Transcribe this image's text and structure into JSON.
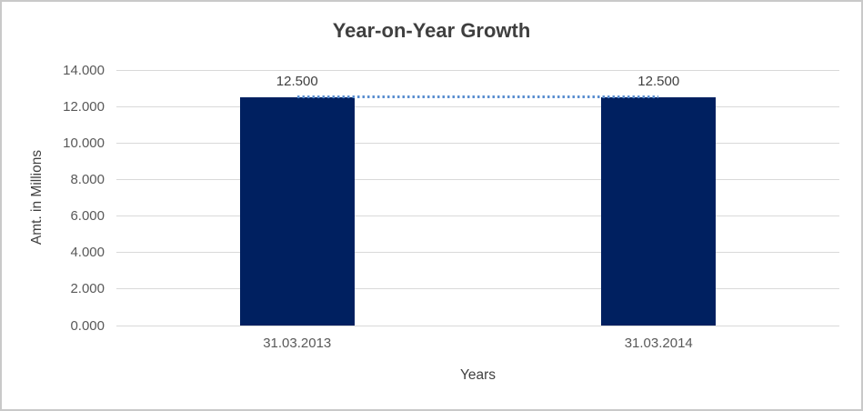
{
  "chart_data": {
    "type": "bar",
    "title": "Year-on-Year Growth",
    "xlabel": "Years",
    "ylabel": "Amt. in Millions",
    "categories": [
      "31.03.2013",
      "31.03.2014"
    ],
    "values": [
      12.5,
      12.5
    ],
    "value_labels": [
      "12.500",
      "12.500"
    ],
    "ylim": [
      0,
      14
    ],
    "ytick_values": [
      14,
      12,
      10,
      8,
      6,
      4,
      2,
      0
    ],
    "ytick_labels": [
      "14.000",
      "12.000",
      "10.000",
      "8.000",
      "6.000",
      "4.000",
      "2.000",
      "0.000"
    ],
    "grid": true,
    "legend_position": "none",
    "connector_line": {
      "style": "dotted",
      "value": 12.5
    },
    "colors": {
      "bar": "#002060",
      "connector": "#5B8FD0",
      "gridline": "#D9D9D9",
      "axis_line": "#D9D9D9",
      "title_text": "#3F3F3F",
      "tick_text": "#595959",
      "axis_title_text": "#404040",
      "frame_border": "#C9C9C9",
      "background": "#FFFFFF"
    }
  }
}
